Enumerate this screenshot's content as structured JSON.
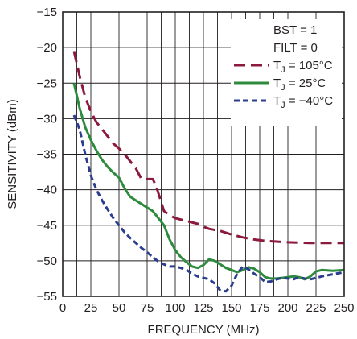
{
  "chart_data": {
    "type": "line",
    "xlabel": "FREQUENCY (MHz)",
    "ylabel": "SENSITIVITY (dBm)",
    "xlim": [
      0,
      250
    ],
    "ylim": [
      -55,
      -15
    ],
    "x_ticks": [
      "0",
      "25",
      "50",
      "75",
      "100",
      "125",
      "150",
      "175",
      "200",
      "225",
      "250"
    ],
    "y_ticks": [
      "−15",
      "−20",
      "−25",
      "−30",
      "−35",
      "−40",
      "−45",
      "−50",
      "−55"
    ],
    "x_tick_values": [
      0,
      25,
      50,
      75,
      100,
      125,
      150,
      175,
      200,
      225,
      250
    ],
    "y_tick_values": [
      -15,
      -20,
      -25,
      -30,
      -35,
      -40,
      -45,
      -50,
      -55
    ],
    "x_minor_step": 12.5,
    "grid": true,
    "legend_position": "top-right",
    "annotations": [
      "BST = 1",
      "FILT = 0"
    ],
    "series": [
      {
        "name": "T_J = 105°C",
        "label_main": "T",
        "label_sub": "J",
        "label_rest": " = 105°C",
        "color": "#8c1a3c",
        "style": "dashed-long",
        "points": [
          [
            10,
            -20.5
          ],
          [
            15,
            -24
          ],
          [
            20,
            -27
          ],
          [
            25,
            -29
          ],
          [
            30,
            -30.5
          ],
          [
            35,
            -31.5
          ],
          [
            40,
            -32.5
          ],
          [
            45,
            -33.5
          ],
          [
            50,
            -34.2
          ],
          [
            55,
            -35
          ],
          [
            60,
            -36
          ],
          [
            65,
            -37
          ],
          [
            70,
            -38.5
          ],
          [
            75,
            -38.5
          ],
          [
            80,
            -38.5
          ],
          [
            83,
            -39.5
          ],
          [
            86,
            -41
          ],
          [
            90,
            -43
          ],
          [
            95,
            -43.6
          ],
          [
            100,
            -44
          ],
          [
            110,
            -44.4
          ],
          [
            120,
            -44.8
          ],
          [
            125,
            -45.2
          ],
          [
            130,
            -45.5
          ],
          [
            140,
            -45.8
          ],
          [
            150,
            -46.3
          ],
          [
            160,
            -46.7
          ],
          [
            170,
            -47
          ],
          [
            180,
            -47.2
          ],
          [
            190,
            -47.3
          ],
          [
            200,
            -47.4
          ],
          [
            220,
            -47.5
          ],
          [
            250,
            -47.5
          ]
        ]
      },
      {
        "name": "T_J = 25°C",
        "label_main": "T",
        "label_sub": "J",
        "label_rest": " = 25°C",
        "color": "#2e8b3e",
        "style": "solid",
        "points": [
          [
            10,
            -25
          ],
          [
            15,
            -28.5
          ],
          [
            20,
            -31.2
          ],
          [
            25,
            -33
          ],
          [
            30,
            -34.5
          ],
          [
            35,
            -35.8
          ],
          [
            40,
            -36.8
          ],
          [
            45,
            -37.6
          ],
          [
            50,
            -38.3
          ],
          [
            55,
            -39.8
          ],
          [
            60,
            -41
          ],
          [
            65,
            -41.5
          ],
          [
            70,
            -42
          ],
          [
            75,
            -42.5
          ],
          [
            80,
            -43
          ],
          [
            85,
            -44
          ],
          [
            90,
            -45
          ],
          [
            95,
            -47
          ],
          [
            100,
            -48.5
          ],
          [
            105,
            -49.5
          ],
          [
            110,
            -50.2
          ],
          [
            115,
            -50.8
          ],
          [
            120,
            -51
          ],
          [
            125,
            -50.6
          ],
          [
            130,
            -49.8
          ],
          [
            135,
            -50
          ],
          [
            140,
            -50.5
          ],
          [
            145,
            -51
          ],
          [
            150,
            -51.3
          ],
          [
            155,
            -51.6
          ],
          [
            160,
            -51.3
          ],
          [
            165,
            -50.9
          ],
          [
            170,
            -51.1
          ],
          [
            175,
            -51.6
          ],
          [
            180,
            -52.3
          ],
          [
            185,
            -52.5
          ],
          [
            190,
            -52.5
          ],
          [
            195,
            -52.4
          ],
          [
            200,
            -52.3
          ],
          [
            205,
            -52.2
          ],
          [
            210,
            -52.3
          ],
          [
            215,
            -52.6
          ],
          [
            220,
            -52.2
          ],
          [
            225,
            -51.5
          ],
          [
            230,
            -51.3
          ],
          [
            240,
            -51.4
          ],
          [
            250,
            -51.3
          ]
        ]
      },
      {
        "name": "T_J = −40°C",
        "label_main": "T",
        "label_sub": "J",
        "label_rest": " = −40°C",
        "color": "#2b3d8f",
        "style": "dashed-short",
        "points": [
          [
            10,
            -29.5
          ],
          [
            15,
            -31.5
          ],
          [
            20,
            -35
          ],
          [
            25,
            -38
          ],
          [
            30,
            -40
          ],
          [
            35,
            -41.5
          ],
          [
            40,
            -42.8
          ],
          [
            45,
            -44
          ],
          [
            50,
            -45
          ],
          [
            55,
            -46
          ],
          [
            60,
            -46.8
          ],
          [
            65,
            -47.5
          ],
          [
            70,
            -48.2
          ],
          [
            75,
            -48.8
          ],
          [
            80,
            -49.5
          ],
          [
            85,
            -50.1
          ],
          [
            90,
            -50.5
          ],
          [
            95,
            -50.8
          ],
          [
            100,
            -50.8
          ],
          [
            105,
            -51
          ],
          [
            110,
            -51.3
          ],
          [
            115,
            -51.8
          ],
          [
            120,
            -52.2
          ],
          [
            125,
            -52.4
          ],
          [
            130,
            -52.6
          ],
          [
            135,
            -53.2
          ],
          [
            140,
            -54.2
          ],
          [
            145,
            -54.3
          ],
          [
            150,
            -53.5
          ],
          [
            155,
            -51.8
          ],
          [
            160,
            -50.8
          ],
          [
            165,
            -51.2
          ],
          [
            170,
            -51.8
          ],
          [
            175,
            -52.3
          ],
          [
            180,
            -53
          ],
          [
            185,
            -52.9
          ],
          [
            190,
            -52.6
          ],
          [
            195,
            -52.4
          ],
          [
            200,
            -52.5
          ],
          [
            205,
            -52.6
          ],
          [
            210,
            -52.3
          ],
          [
            215,
            -52.5
          ],
          [
            220,
            -52.6
          ],
          [
            225,
            -52.4
          ],
          [
            230,
            -52.2
          ],
          [
            240,
            -51.9
          ],
          [
            250,
            -51.6
          ]
        ]
      }
    ]
  }
}
